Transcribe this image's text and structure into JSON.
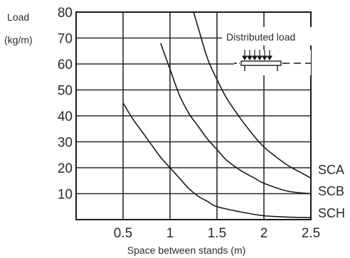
{
  "chart_data": {
    "type": "line",
    "xlabel": "Space between stands (m)",
    "ylabel_line1": "Load",
    "ylabel_line2": "(kg/m)",
    "xlim": [
      0.0,
      2.5
    ],
    "ylim": [
      0,
      80
    ],
    "x_ticks": [
      0.5,
      1,
      1.5,
      2,
      2.5
    ],
    "x_tick_labels": [
      "0.5",
      "1",
      "1.5",
      "2",
      "2.5"
    ],
    "y_ticks": [
      10,
      20,
      30,
      40,
      50,
      60,
      70,
      80
    ],
    "y_tick_labels": [
      "10",
      "20",
      "30",
      "40",
      "50",
      "60",
      "70",
      "80"
    ],
    "grid": true,
    "series": [
      {
        "name": "SCA",
        "x": [
          1.25,
          1.3,
          1.4,
          1.5,
          1.6,
          1.75,
          1.9,
          2.0,
          2.1,
          2.25,
          2.4,
          2.5
        ],
        "y": [
          80,
          74,
          62,
          54,
          47,
          39,
          32,
          28,
          25,
          21,
          18,
          16
        ]
      },
      {
        "name": "SCB",
        "x": [
          0.9,
          1.0,
          1.1,
          1.2,
          1.3,
          1.4,
          1.5,
          1.6,
          1.75,
          1.9,
          2.0,
          2.25,
          2.5
        ],
        "y": [
          68,
          58,
          48,
          41,
          36,
          31,
          27,
          23,
          19,
          16,
          14,
          11,
          10
        ]
      },
      {
        "name": "SCH",
        "x": [
          0.5,
          0.6,
          0.7,
          0.8,
          0.9,
          1.0,
          1.1,
          1.2,
          1.3,
          1.4,
          1.5,
          1.75,
          2.0,
          2.25,
          2.5
        ],
        "y": [
          45,
          39,
          34,
          29,
          24,
          20,
          16,
          12,
          9,
          7,
          5,
          3,
          1.5,
          1,
          0.8
        ]
      }
    ],
    "annotation": "Distributed load"
  }
}
